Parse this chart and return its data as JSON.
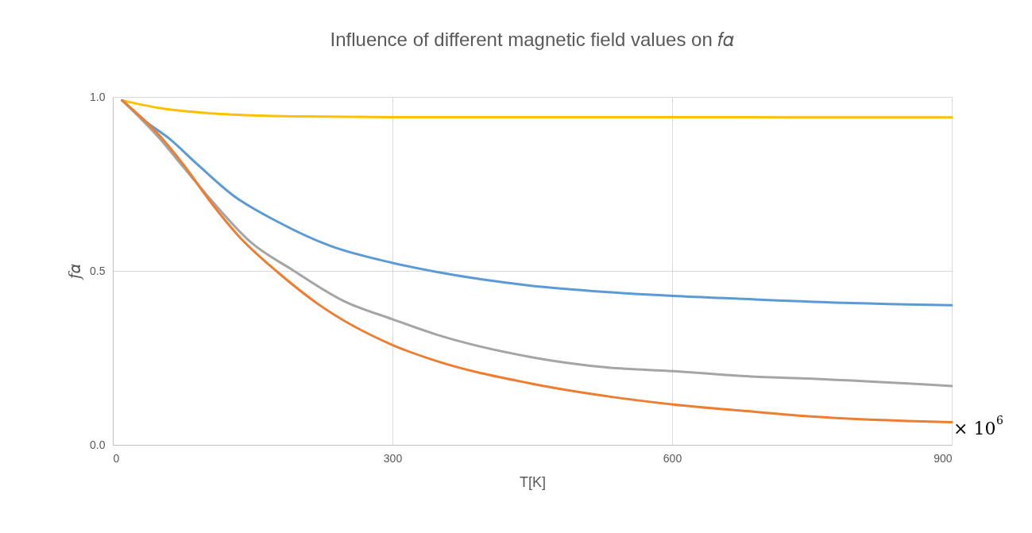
{
  "chart_data": {
    "type": "line",
    "title": "Influence of different magnetic field values on 𝑓𝛼",
    "xlabel": "T[K]",
    "ylabel": "𝑓𝛼",
    "xlim": [
      0,
      900
    ],
    "xticks": [
      0,
      300,
      600,
      900
    ],
    "ylim": [
      0,
      1
    ],
    "yticks": [
      {
        "value": 0,
        "label": "0.0"
      },
      0.5,
      {
        "value": 1,
        "label": "1.0"
      }
    ],
    "grid": true,
    "marker": "none",
    "line_style": "solid",
    "annotations": [
      {
        "text": "× 10$^{6}$",
        "x": 900,
        "y": 0.065
      }
    ],
    "series": [
      {
        "color": "#ffc000",
        "x": [
          10,
          50,
          100,
          150,
          200,
          300,
          450,
          600,
          750,
          900
        ],
        "values": [
          0.99,
          0.968,
          0.954,
          0.947,
          0.944,
          0.942,
          0.942,
          0.942,
          0.941,
          0.941
        ]
      },
      {
        "color": "#5b9bd5",
        "x": [
          10,
          35,
          62,
          90,
          129,
          177,
          233,
          300,
          347,
          447,
          532,
          601,
          689,
          731,
          900
        ],
        "values": [
          0.99,
          0.93,
          0.877,
          0.808,
          0.717,
          0.641,
          0.572,
          0.523,
          0.497,
          0.458,
          0.439,
          0.428,
          0.418,
          0.413,
          0.401
        ]
      },
      {
        "color": "#a5a5a5",
        "x": [
          10,
          49,
          77,
          106,
          149,
          192,
          248,
          300,
          347,
          447,
          532,
          601,
          689,
          731,
          900
        ],
        "values": [
          0.99,
          0.884,
          0.794,
          0.702,
          0.58,
          0.504,
          0.413,
          0.361,
          0.317,
          0.253,
          0.222,
          0.212,
          0.196,
          0.192,
          0.169
        ]
      },
      {
        "color": "#ed7d31",
        "x": [
          10,
          49,
          77,
          106,
          134,
          177,
          220,
          300,
          347,
          447,
          532,
          601,
          689,
          731,
          900
        ],
        "values": [
          0.99,
          0.892,
          0.801,
          0.694,
          0.603,
          0.496,
          0.405,
          0.287,
          0.241,
          0.177,
          0.139,
          0.116,
          0.095,
          0.085,
          0.065
        ]
      }
    ]
  }
}
